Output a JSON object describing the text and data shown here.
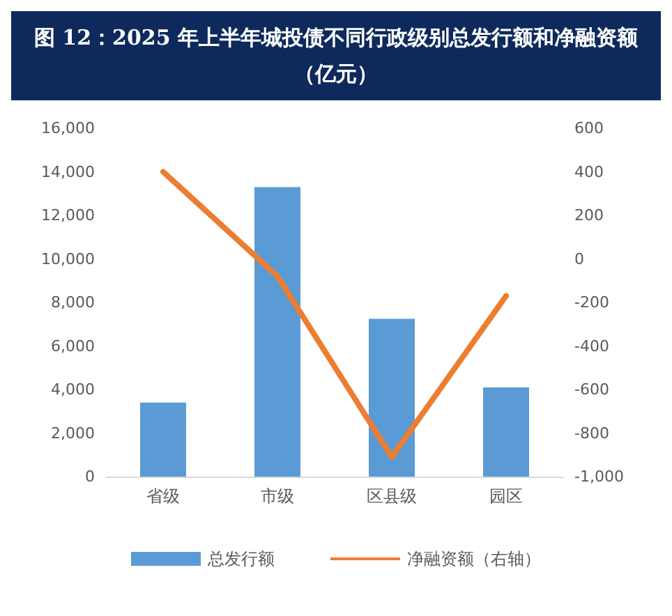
{
  "chart_data": {
    "type": "bar",
    "title": "图 12：2025 年上半年城投债不同行政级别总发行额和净融资额（亿元）",
    "categories": [
      "省级",
      "市级",
      "区县级",
      "园区"
    ],
    "series": [
      {
        "name": "总发行额",
        "color": "#5b9bd5",
        "values": [
          3400,
          13300,
          7250,
          4100
        ]
      },
      {
        "name": "净融资额（右轴）",
        "type": "line",
        "axis": "y2",
        "color": "#ed7d31",
        "values": [
          400,
          -80,
          -910,
          -170
        ]
      }
    ],
    "ylim": [
      0,
      16000
    ],
    "yticks": [
      0,
      {
        "value": 2000,
        "label": "2,000"
      },
      {
        "value": 4000,
        "label": "4,000"
      },
      {
        "value": 6000,
        "label": "6,000"
      },
      {
        "value": 8000,
        "label": "8,000"
      },
      {
        "value": 10000,
        "label": "10,000"
      },
      {
        "value": 12000,
        "label": "12,000"
      },
      {
        "value": 14000,
        "label": "14,000"
      },
      {
        "value": 16000,
        "label": "16,000"
      }
    ],
    "y2lim": [
      -1000,
      600
    ],
    "y2ticks": [
      {
        "value": -1000,
        "label": "-1,000"
      },
      -800,
      -600,
      -400,
      -200,
      0,
      200,
      400,
      600
    ],
    "grid": false,
    "legend": "bottom",
    "marker": "none"
  }
}
